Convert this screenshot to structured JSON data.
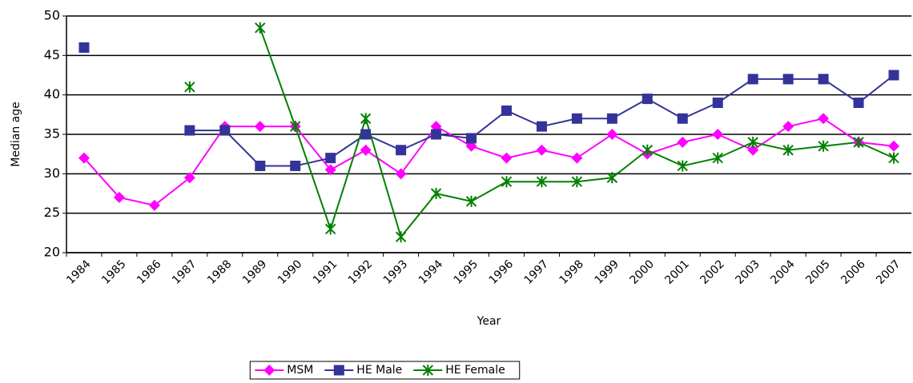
{
  "chart_data": {
    "type": "line",
    "x_label": "Year",
    "y_label": "Median age",
    "categories": [
      "1984",
      "1985",
      "1986",
      "1987",
      "1988",
      "1989",
      "1990",
      "1991",
      "1992",
      "1993",
      "1994",
      "1995",
      "1996",
      "1997",
      "1998",
      "1999",
      "2000",
      "2001",
      "2002",
      "2003",
      "2004",
      "2005",
      "2006",
      "2007"
    ],
    "series": [
      {
        "name": "MSM",
        "color": "#ff00ff",
        "marker": "diamond",
        "values": [
          32,
          27,
          26,
          29.5,
          36,
          36,
          36,
          30.5,
          33,
          30,
          36,
          33.5,
          32,
          33,
          32,
          35,
          32.5,
          34,
          35,
          33,
          36,
          37,
          34,
          33.5
        ]
      },
      {
        "name": "HE Male",
        "color": "#333399",
        "marker": "square",
        "values": [
          46,
          null,
          null,
          35.5,
          35.5,
          31,
          31,
          32,
          35,
          33,
          35,
          34.5,
          38,
          36,
          37,
          37,
          39.5,
          37,
          39,
          42,
          42,
          42,
          39,
          42.5
        ]
      },
      {
        "name": "HE Female",
        "color": "#008000",
        "marker": "asterisk",
        "values": [
          null,
          null,
          null,
          41,
          null,
          48.5,
          36,
          23,
          37,
          22,
          27.5,
          26.5,
          29,
          29,
          29,
          29.5,
          33,
          31,
          32,
          34,
          33,
          33.5,
          34,
          32
        ]
      }
    ],
    "ylim": [
      20,
      50
    ],
    "yticks": [
      20,
      25,
      30,
      35,
      40,
      45,
      50
    ],
    "grid": true,
    "legend": "bottom"
  }
}
